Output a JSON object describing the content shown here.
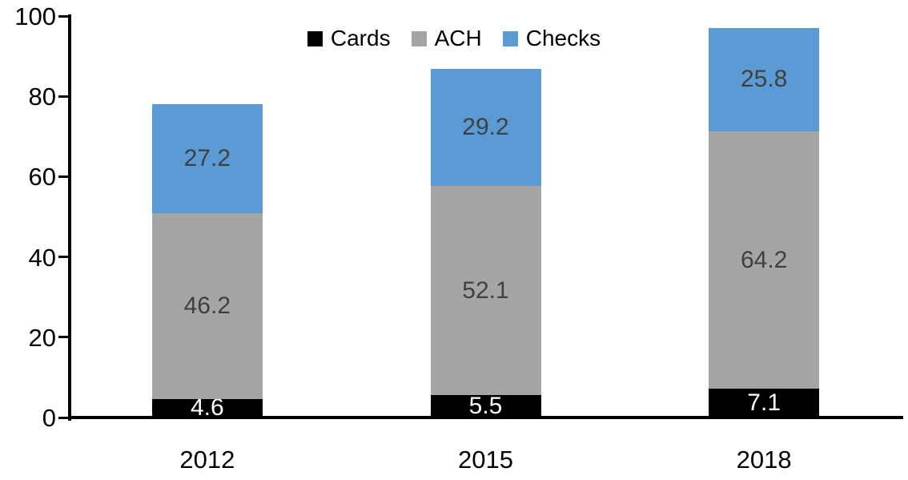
{
  "chart_data": {
    "type": "bar",
    "stacked": true,
    "title": "",
    "xlabel": "",
    "ylabel": "",
    "categories": [
      "2012",
      "2015",
      "2018"
    ],
    "series": [
      {
        "name": "Cards",
        "color": "#000000",
        "label_color": "#FFFFFF",
        "values": [
          4.6,
          5.5,
          7.1
        ]
      },
      {
        "name": "ACH",
        "color": "#A5A5A5",
        "label_color": "#404040",
        "values": [
          46.2,
          52.1,
          64.2
        ]
      },
      {
        "name": "Checks",
        "color": "#5B9BD5",
        "label_color": "#404040",
        "values": [
          27.2,
          29.2,
          25.8
        ]
      }
    ],
    "ylim": [
      0,
      100
    ],
    "yticks": [
      0,
      20,
      40,
      60,
      80,
      100
    ],
    "grid": false,
    "legend_position": "top-center",
    "axis_color": "#000000",
    "data_labels_shown": true
  }
}
